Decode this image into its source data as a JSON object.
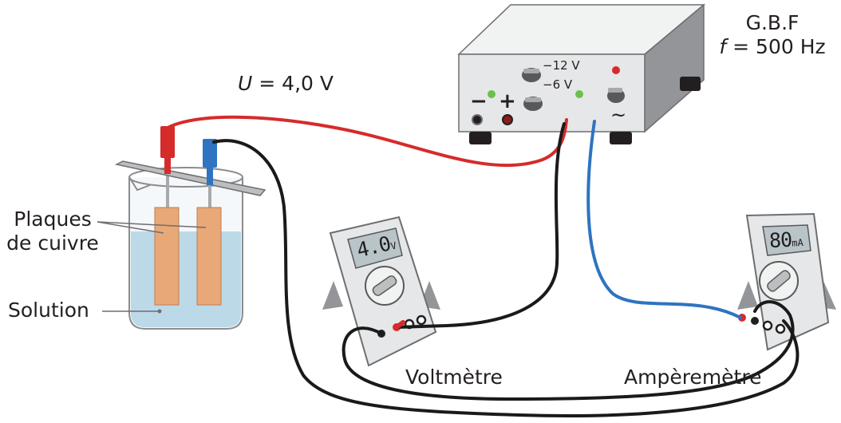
{
  "labels": {
    "voltage_var": "U",
    "voltage_value": "= 4,0 V",
    "generator_name": "G.B.F",
    "frequency_var": "f",
    "frequency_value": "= 500 Hz",
    "plates_line1": "Plaques",
    "plates_line2": "de cuivre",
    "solution": "Solution",
    "voltmeter": "Voltmètre",
    "ammeter": "Ampèremètre"
  },
  "generator": {
    "terminal_minus": "−",
    "terminal_plus": "+",
    "range_high": "−12 V",
    "range_low": "−6 V",
    "ac_symbol": "~"
  },
  "voltmeter_display": {
    "value": "4.0",
    "unit": "V"
  },
  "ammeter_display": {
    "value": "80",
    "unit": "mA"
  },
  "colors": {
    "red_wire": "#d62b2b",
    "blue_wire": "#2e74c0",
    "black_wire": "#1a1a1a",
    "copper": "#e8a878",
    "solution": "#bcd9e8",
    "meter_body": "#e6e7e8",
    "lcd": "#b9c4c9"
  }
}
